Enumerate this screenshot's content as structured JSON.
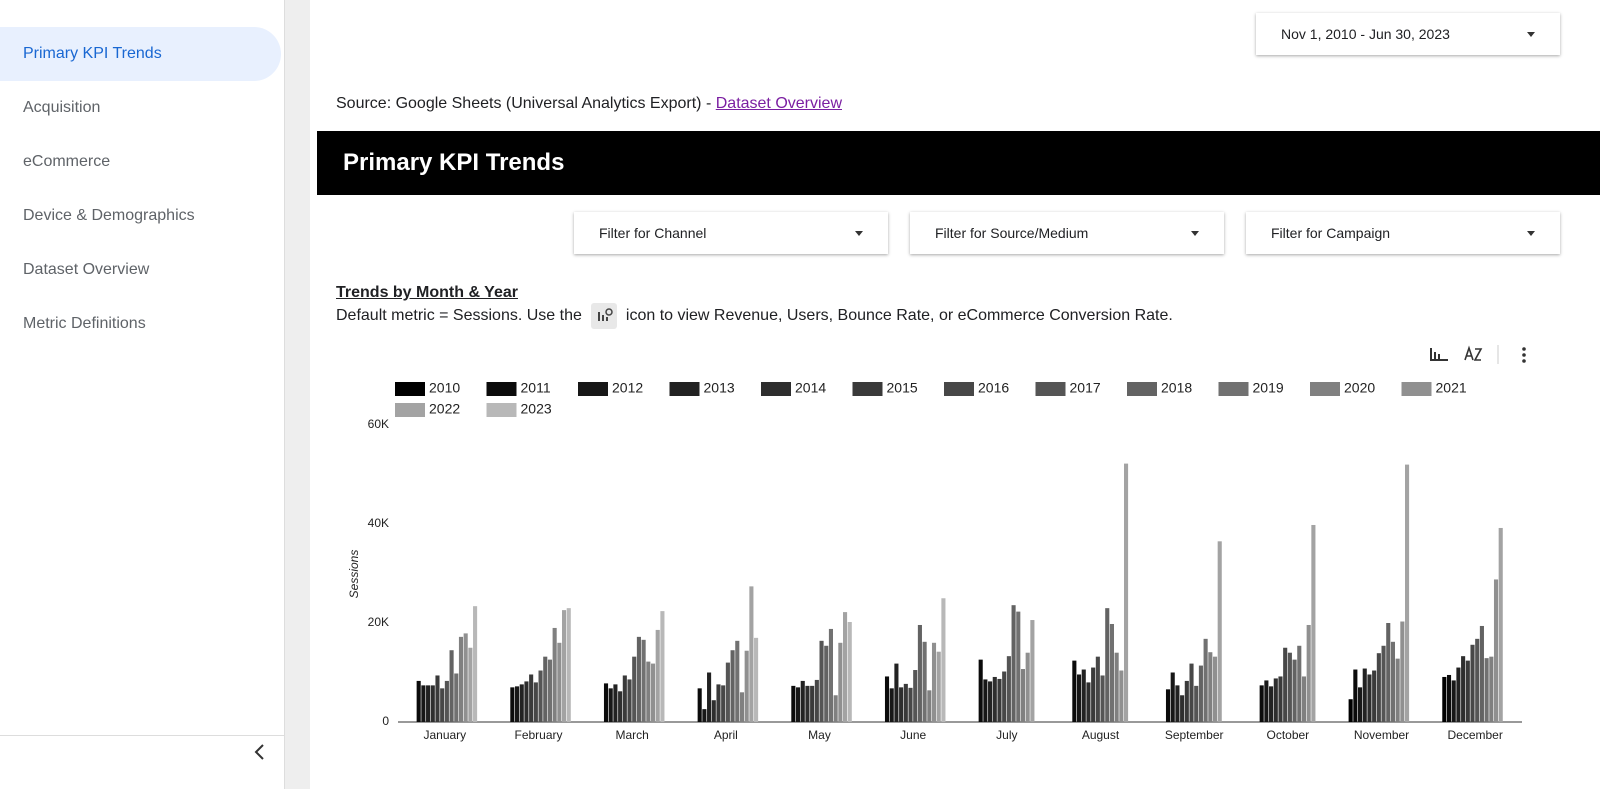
{
  "nav": [
    "Primary KPI Trends",
    "Acquisition",
    "eCommerce",
    "Device & Demographics",
    "Dataset Overview",
    "Metric Definitions"
  ],
  "date_range": "Nov 1, 2010 - Jun 30, 2023",
  "source": {
    "text": "Source: Google Sheets (Universal Analytics Export) -",
    "link": "Dataset Overview"
  },
  "section_title": "Primary KPI Trends",
  "filters": [
    "Filter for Channel",
    "Filter for Source/Medium",
    "Filter for Campaign"
  ],
  "chart_heading": "Trends by Month & Year",
  "description": {
    "before": "Default metric = Sessions. Use the",
    "after": "icon to view Revenue, Users, Bounce Rate, or eCommerce Conversion Rate."
  },
  "chart_data": {
    "type": "bar",
    "y_label": "Sessions",
    "categories": [
      "January",
      "February",
      "March",
      "April",
      "May",
      "June",
      "July",
      "August",
      "September",
      "October",
      "November",
      "December"
    ],
    "ylim": [
      0,
      60000
    ],
    "yticks": [
      0,
      {
        "value": 20000,
        "label": "20K"
      },
      {
        "value": 40000,
        "label": "40K"
      },
      {
        "value": 60000,
        "label": "60K"
      }
    ],
    "series": [
      {
        "name": "2010",
        "color": "#000000",
        "values": [
          null,
          null,
          null,
          null,
          null,
          null,
          null,
          null,
          null,
          null,
          4600,
          9100
        ]
      },
      {
        "name": "2011",
        "color": "#0b0b0b",
        "values": [
          8300,
          7000,
          7800,
          6800,
          7300,
          9200,
          12600,
          12400,
          6600,
          7400,
          10600,
          9500
        ]
      },
      {
        "name": "2012",
        "color": "#171717",
        "values": [
          7400,
          7200,
          6800,
          2600,
          7000,
          6800,
          8600,
          9600,
          10000,
          8400,
          7000,
          8400
        ]
      },
      {
        "name": "2013",
        "color": "#222222",
        "values": [
          7400,
          7600,
          7600,
          10000,
          8300,
          11800,
          8200,
          10600,
          7400,
          7200,
          10800,
          11000
        ]
      },
      {
        "name": "2014",
        "color": "#2e2e2e",
        "values": [
          7400,
          8200,
          6200,
          4400,
          7300,
          7000,
          9100,
          8000,
          5400,
          8800,
          9600,
          13300
        ]
      },
      {
        "name": "2015",
        "color": "#3a3a3a",
        "values": [
          9400,
          9600,
          9400,
          7600,
          7300,
          7700,
          8700,
          11000,
          8300,
          9200,
          10400,
          12400
        ]
      },
      {
        "name": "2016",
        "color": "#474747",
        "values": [
          6800,
          8000,
          8600,
          7400,
          8500,
          6900,
          10200,
          13200,
          11800,
          15000,
          13900,
          15600
        ]
      },
      {
        "name": "2017",
        "color": "#555555",
        "values": [
          8300,
          10400,
          13200,
          12000,
          16400,
          10500,
          13300,
          9400,
          7300,
          14000,
          15400,
          16800
        ]
      },
      {
        "name": "2018",
        "color": "#636363",
        "values": [
          14500,
          13200,
          17200,
          14500,
          15400,
          19600,
          23600,
          23000,
          11400,
          12600,
          20000,
          19400
        ]
      },
      {
        "name": "2019",
        "color": "#717171",
        "values": [
          9800,
          12600,
          16600,
          16400,
          18800,
          16200,
          22300,
          19800,
          16800,
          15400,
          16200,
          12900
        ]
      },
      {
        "name": "2020",
        "color": "#808080",
        "values": [
          17200,
          19000,
          12200,
          6000,
          5400,
          6400,
          10700,
          14000,
          14100,
          9200,
          12800,
          13200
        ]
      },
      {
        "name": "2021",
        "color": "#909090",
        "values": [
          17900,
          16000,
          11800,
          14400,
          16000,
          16000,
          14000,
          10400,
          13200,
          19600,
          20300,
          28800
        ]
      },
      {
        "name": "2022",
        "color": "#a3a3a3",
        "values": [
          15000,
          22600,
          18600,
          27400,
          22200,
          14200,
          20600,
          52200,
          36500,
          39800,
          52000,
          39200
        ]
      },
      {
        "name": "2023",
        "color": "#b8b8b8",
        "values": [
          23400,
          23000,
          22400,
          17000,
          20200,
          25000,
          null,
          null,
          null,
          null,
          null,
          null
        ]
      }
    ]
  }
}
